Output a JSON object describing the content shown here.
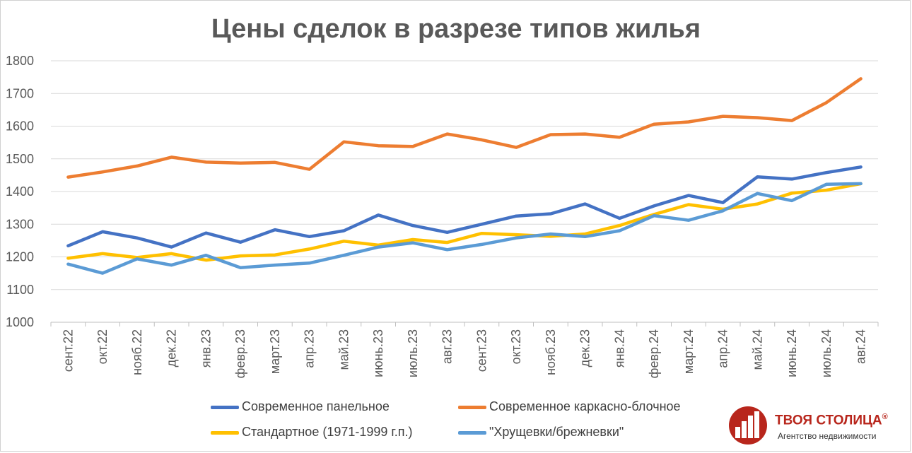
{
  "chart_data": {
    "type": "line",
    "title": "Цены сделок в разрезе типов жилья",
    "xlabel": "",
    "ylabel": "",
    "ylim": [
      1000,
      1800
    ],
    "yticks": [
      1000,
      1100,
      1200,
      1300,
      1400,
      1500,
      1600,
      1700,
      1800
    ],
    "grid": true,
    "legend": "bottom",
    "categories": [
      "сент.22",
      "окт.22",
      "нояб.22",
      "дек.22",
      "янв.23",
      "февр.23",
      "март.23",
      "апр.23",
      "май.23",
      "июнь.23",
      "июль.23",
      "авг.23",
      "сент.23",
      "окт.23",
      "нояб.23",
      "дек.23",
      "янв.24",
      "февр.24",
      "март.24",
      "апр.24",
      "май.24",
      "июнь.24",
      "июль.24",
      "авг.24"
    ],
    "series": [
      {
        "name": "Современное панельное",
        "color": "#4472c4",
        "values": [
          1234,
          1277,
          1258,
          1230,
          1273,
          1245,
          1283,
          1262,
          1280,
          1328,
          1296,
          1275,
          1300,
          1325,
          1332,
          1362,
          1318,
          1356,
          1388,
          1366,
          1445,
          1438,
          1458,
          1475
        ]
      },
      {
        "name": "Современное каркасно-блочное",
        "color": "#ed7d31",
        "values": [
          1444,
          1460,
          1478,
          1505,
          1490,
          1487,
          1489,
          1468,
          1552,
          1540,
          1538,
          1576,
          1558,
          1535,
          1574,
          1576,
          1566,
          1606,
          1613,
          1630,
          1626,
          1617,
          1672,
          1745
        ]
      },
      {
        "name": "Стандартное (1971-1999 г.п.)",
        "color": "#ffc000",
        "values": [
          1196,
          1210,
          1198,
          1210,
          1190,
          1203,
          1206,
          1224,
          1248,
          1236,
          1253,
          1244,
          1272,
          1268,
          1263,
          1270,
          1296,
          1330,
          1360,
          1346,
          1362,
          1395,
          1404,
          1424
        ]
      },
      {
        "name": "\"Хрущевки/брежневки\"",
        "color": "#5b9bd5",
        "values": [
          1178,
          1150,
          1194,
          1175,
          1205,
          1167,
          1175,
          1181,
          1205,
          1230,
          1243,
          1222,
          1238,
          1258,
          1270,
          1262,
          1280,
          1326,
          1312,
          1341,
          1394,
          1372,
          1422,
          1424
        ]
      }
    ]
  },
  "logo": {
    "name": "ТВОЯ СТОЛИЦА",
    "mark": "®",
    "subtitle": "Агентство недвижимости"
  }
}
